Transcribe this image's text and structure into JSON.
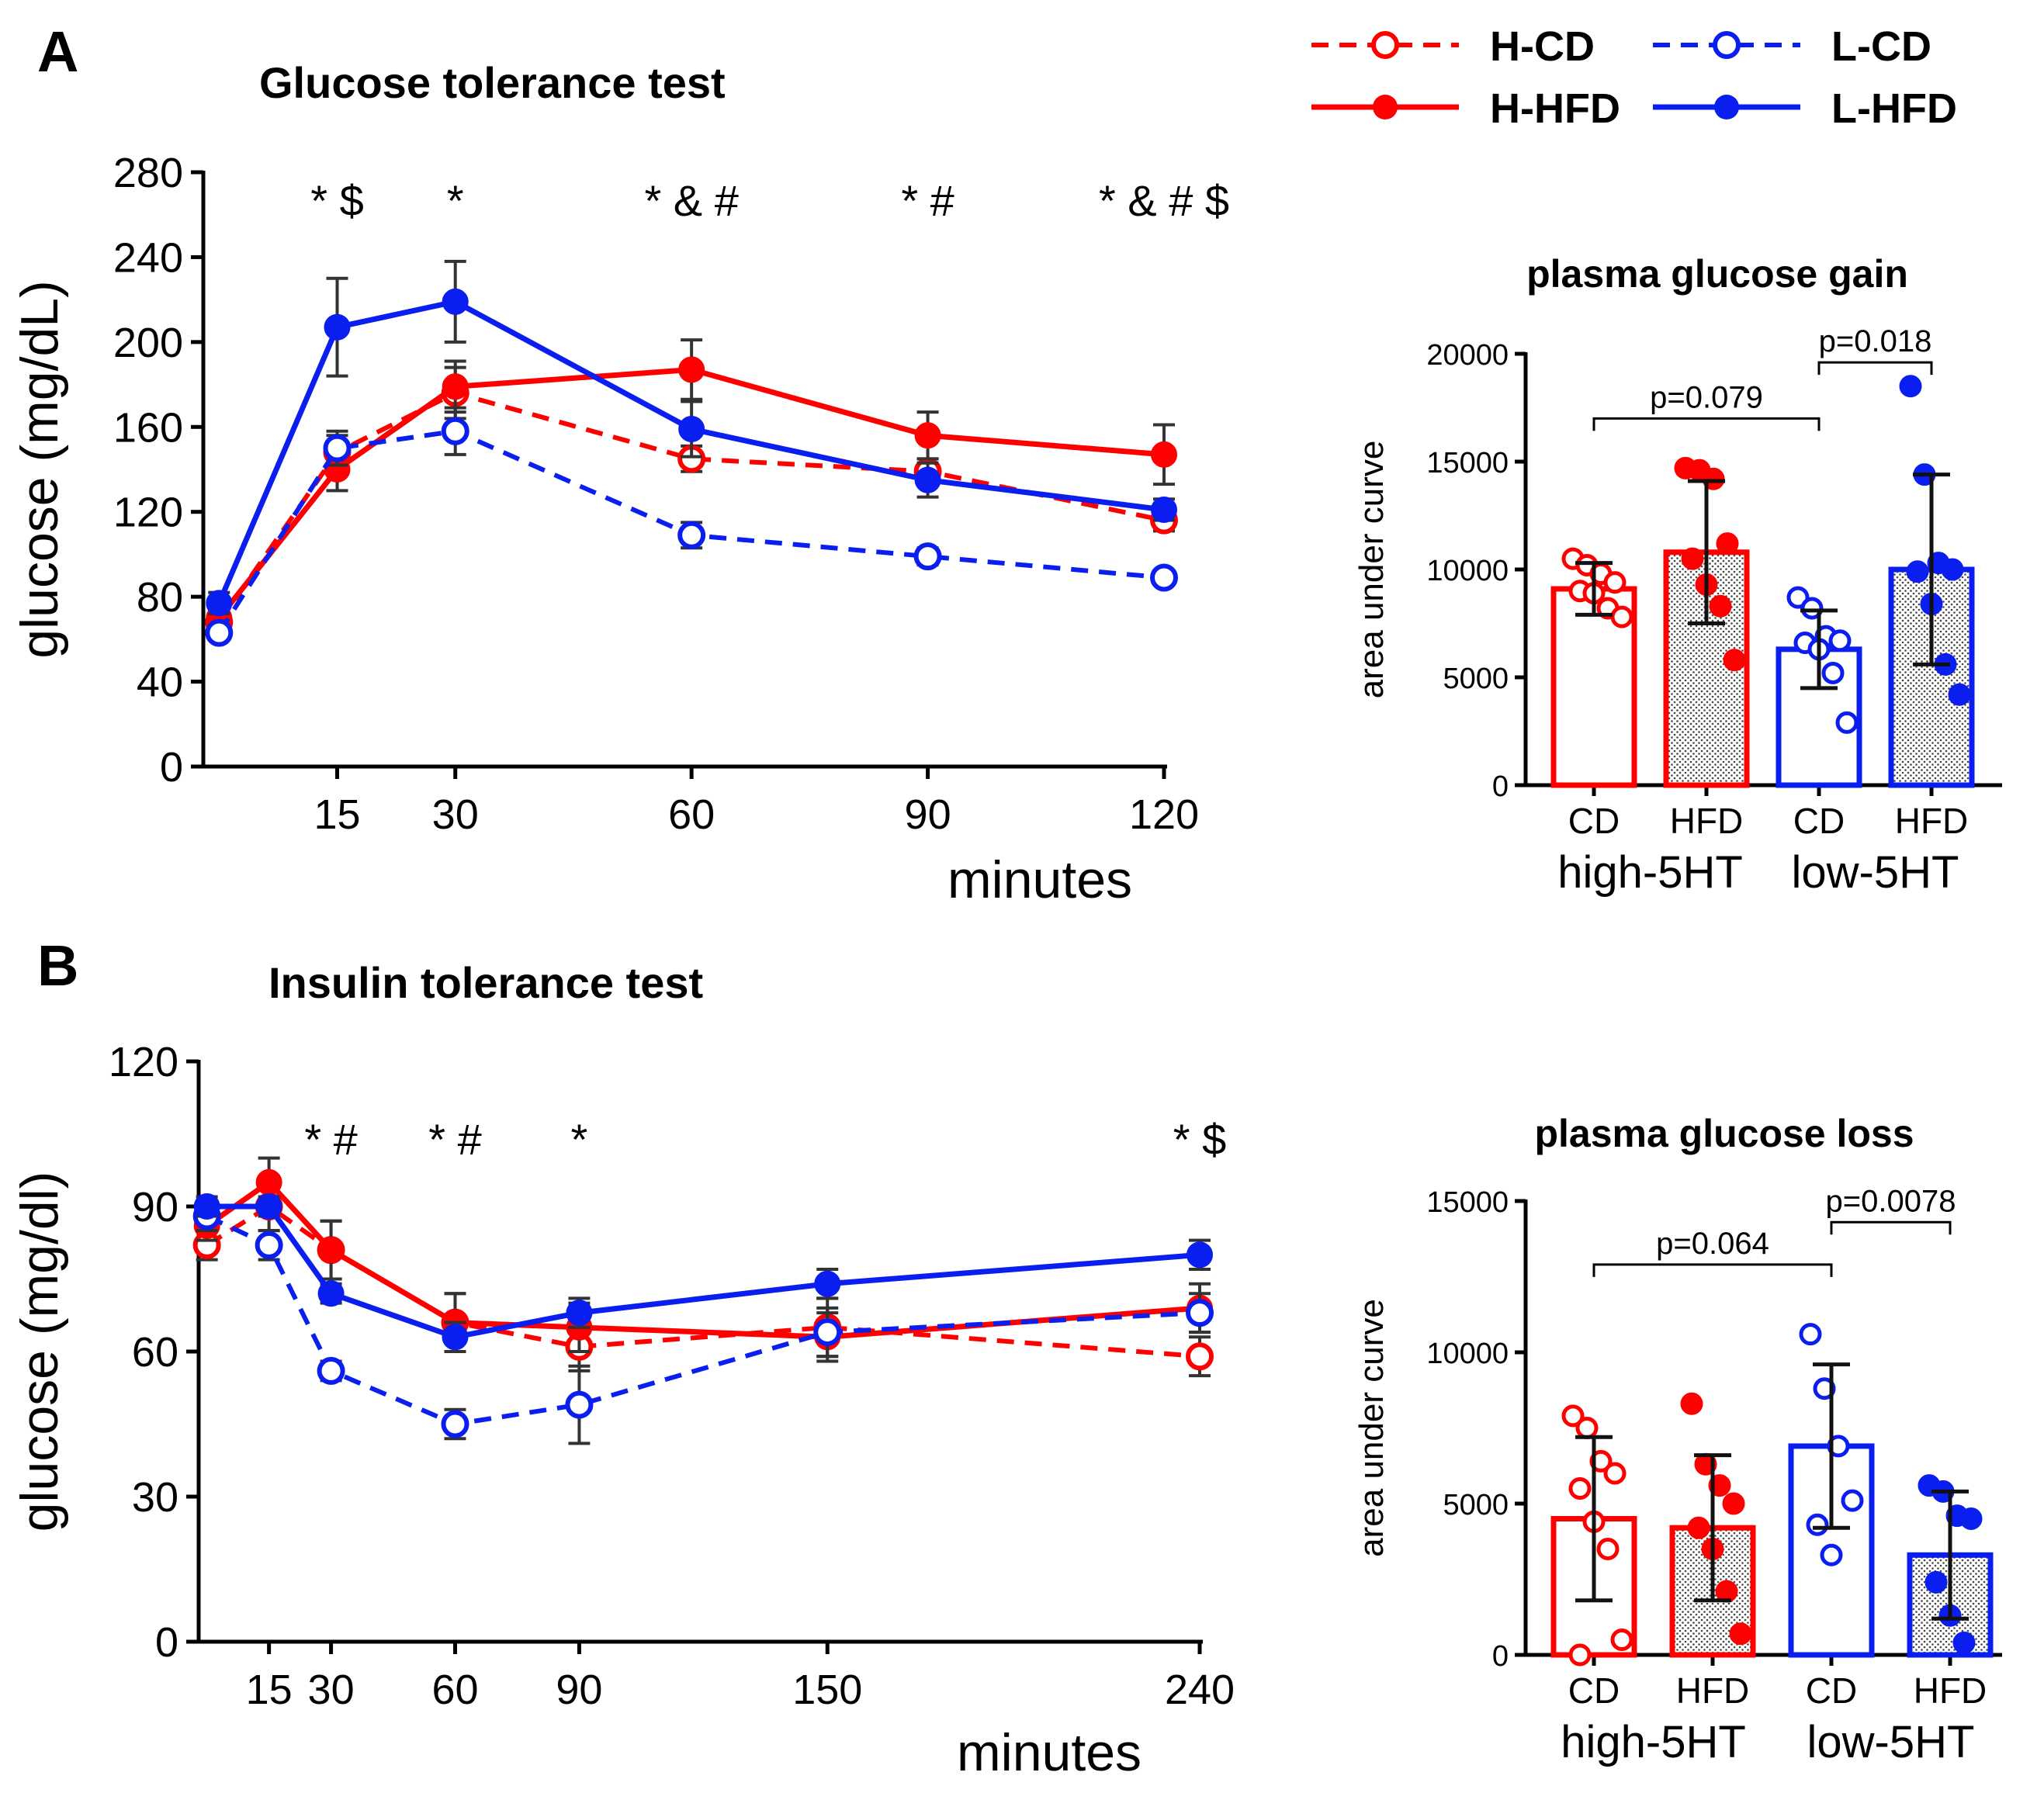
{
  "panels": {
    "A": "A",
    "B": "B"
  },
  "colors": {
    "high": "#ff0000",
    "low": "#0a1ef0",
    "error": "#333333"
  },
  "legend": [
    {
      "label": "H-CD",
      "group": "high",
      "diet": "CD"
    },
    {
      "label": "H-HFD",
      "group": "high",
      "diet": "HFD"
    },
    {
      "label": "L-CD",
      "group": "low",
      "diet": "CD"
    },
    {
      "label": "L-HFD",
      "group": "low",
      "diet": "HFD"
    }
  ],
  "chart_data": [
    {
      "id": "gtt",
      "type": "line",
      "title": "Glucose tolerance test",
      "xlabel": "minutes",
      "ylabel": "glucose (mg/dL)",
      "x": [
        0,
        15,
        30,
        60,
        90,
        120
      ],
      "xticks": [
        15,
        30,
        60,
        90,
        120
      ],
      "xlim": [
        -2,
        120
      ],
      "ylim": [
        0,
        280
      ],
      "yticks": [
        0,
        40,
        80,
        120,
        160,
        200,
        240,
        280
      ],
      "significance": [
        {
          "x": 15,
          "label": "* $"
        },
        {
          "x": 30,
          "label": "*"
        },
        {
          "x": 60,
          "label": "* & #"
        },
        {
          "x": 90,
          "label": "* #"
        },
        {
          "x": 120,
          "label": "* & # $"
        }
      ],
      "series": [
        {
          "name": "H-CD",
          "values": [
            68,
            148,
            176,
            145,
            139,
            116
          ],
          "err": [
            4,
            8,
            12,
            6,
            6,
            5
          ]
        },
        {
          "name": "H-HFD",
          "values": [
            70,
            140,
            179,
            187,
            156,
            147
          ],
          "err": [
            5,
            10,
            12,
            14,
            11,
            14
          ]
        },
        {
          "name": "L-CD",
          "values": [
            63,
            150,
            158,
            109,
            99,
            89
          ],
          "err": [
            3,
            8,
            11,
            6,
            4,
            3
          ]
        },
        {
          "name": "L-HFD",
          "values": [
            77,
            207,
            219,
            159,
            135,
            121
          ],
          "err": [
            5,
            23,
            19,
            13,
            8,
            5
          ]
        }
      ]
    },
    {
      "id": "gtt_auc",
      "type": "bar",
      "title": "plasma glucose gain",
      "ylabel": "area under curve",
      "ylim": [
        0,
        20000
      ],
      "yticks": [
        0,
        5000,
        10000,
        15000,
        20000
      ],
      "categories": [
        "CD",
        "HFD",
        "CD",
        "HFD"
      ],
      "groups": [
        "high-5HT",
        "low-5HT"
      ],
      "values": [
        9100,
        10800,
        6300,
        10000
      ],
      "err": [
        1200,
        3300,
        1800,
        4400
      ],
      "points": [
        [
          10500,
          10200,
          9800,
          9400,
          9000,
          8900,
          8200,
          7800
        ],
        [
          14700,
          14600,
          14200,
          11200,
          10500,
          9300,
          8300,
          5800
        ],
        [
          8700,
          8200,
          6900,
          6700,
          6600,
          6300,
          5200,
          2900
        ],
        [
          18500,
          14400,
          10300,
          10000,
          9900,
          8400,
          5600,
          4200
        ]
      ],
      "comparisons": [
        {
          "from": 0,
          "to": 2,
          "label": "p=0.079",
          "y": 17000
        },
        {
          "from": 2,
          "to": 3,
          "label": "p=0.018",
          "y": 19600
        }
      ]
    },
    {
      "id": "itt",
      "type": "line",
      "title": "Insulin tolerance test",
      "xlabel": "minutes",
      "ylabel": "glucose (mg/dl)",
      "x": [
        0,
        15,
        30,
        60,
        90,
        150,
        240
      ],
      "xticks": [
        15,
        30,
        60,
        90,
        150,
        240
      ],
      "xlim": [
        -2,
        240
      ],
      "ylim": [
        0,
        120
      ],
      "yticks": [
        0,
        30,
        60,
        90,
        120
      ],
      "significance": [
        {
          "x": 30,
          "label": "* #"
        },
        {
          "x": 60,
          "label": "* #"
        },
        {
          "x": 90,
          "label": "*"
        },
        {
          "x": 240,
          "label": "* $"
        }
      ],
      "series": [
        {
          "name": "H-CD",
          "values": [
            82,
            90,
            81,
            66,
            61,
            65,
            59
          ],
          "err": [
            3,
            5,
            6,
            6,
            5,
            6,
            4
          ]
        },
        {
          "name": "H-HFD",
          "values": [
            86,
            95,
            81,
            66,
            65,
            63,
            69
          ],
          "err": [
            3,
            5,
            6,
            6,
            5,
            5,
            5
          ]
        },
        {
          "name": "L-CD",
          "values": [
            88,
            82,
            56,
            45,
            49,
            64,
            68
          ],
          "err": [
            3,
            3,
            2,
            3,
            8,
            5,
            4
          ]
        },
        {
          "name": "L-HFD",
          "values": [
            90,
            90,
            72,
            63,
            68,
            74,
            80
          ],
          "err": [
            2,
            2,
            2,
            3,
            3,
            3,
            3
          ]
        }
      ]
    },
    {
      "id": "itt_auc",
      "type": "bar",
      "title": "plasma glucose loss",
      "ylabel": "area under curve",
      "ylim": [
        0,
        15000
      ],
      "yticks": [
        0,
        5000,
        10000,
        15000
      ],
      "categories": [
        "CD",
        "HFD",
        "CD",
        "HFD"
      ],
      "groups": [
        "high-5HT",
        "low-5HT"
      ],
      "values": [
        4500,
        4200,
        6900,
        3300
      ],
      "err": [
        2700,
        2400,
        2700,
        2100
      ],
      "points": [
        [
          7900,
          7500,
          6400,
          6000,
          5500,
          4400,
          3500,
          500,
          0
        ],
        [
          8300,
          6300,
          5600,
          5000,
          4200,
          3500,
          2100,
          700
        ],
        [
          10600,
          8800,
          6900,
          5100,
          4300,
          3300
        ],
        [
          5600,
          5400,
          4600,
          4500,
          2400,
          1300,
          400
        ]
      ],
      "comparisons": [
        {
          "from": 0,
          "to": 2,
          "label": "p=0.064",
          "y": 12900
        },
        {
          "from": 2,
          "to": 3,
          "label": "p=0.0078",
          "y": 14300
        }
      ]
    }
  ]
}
